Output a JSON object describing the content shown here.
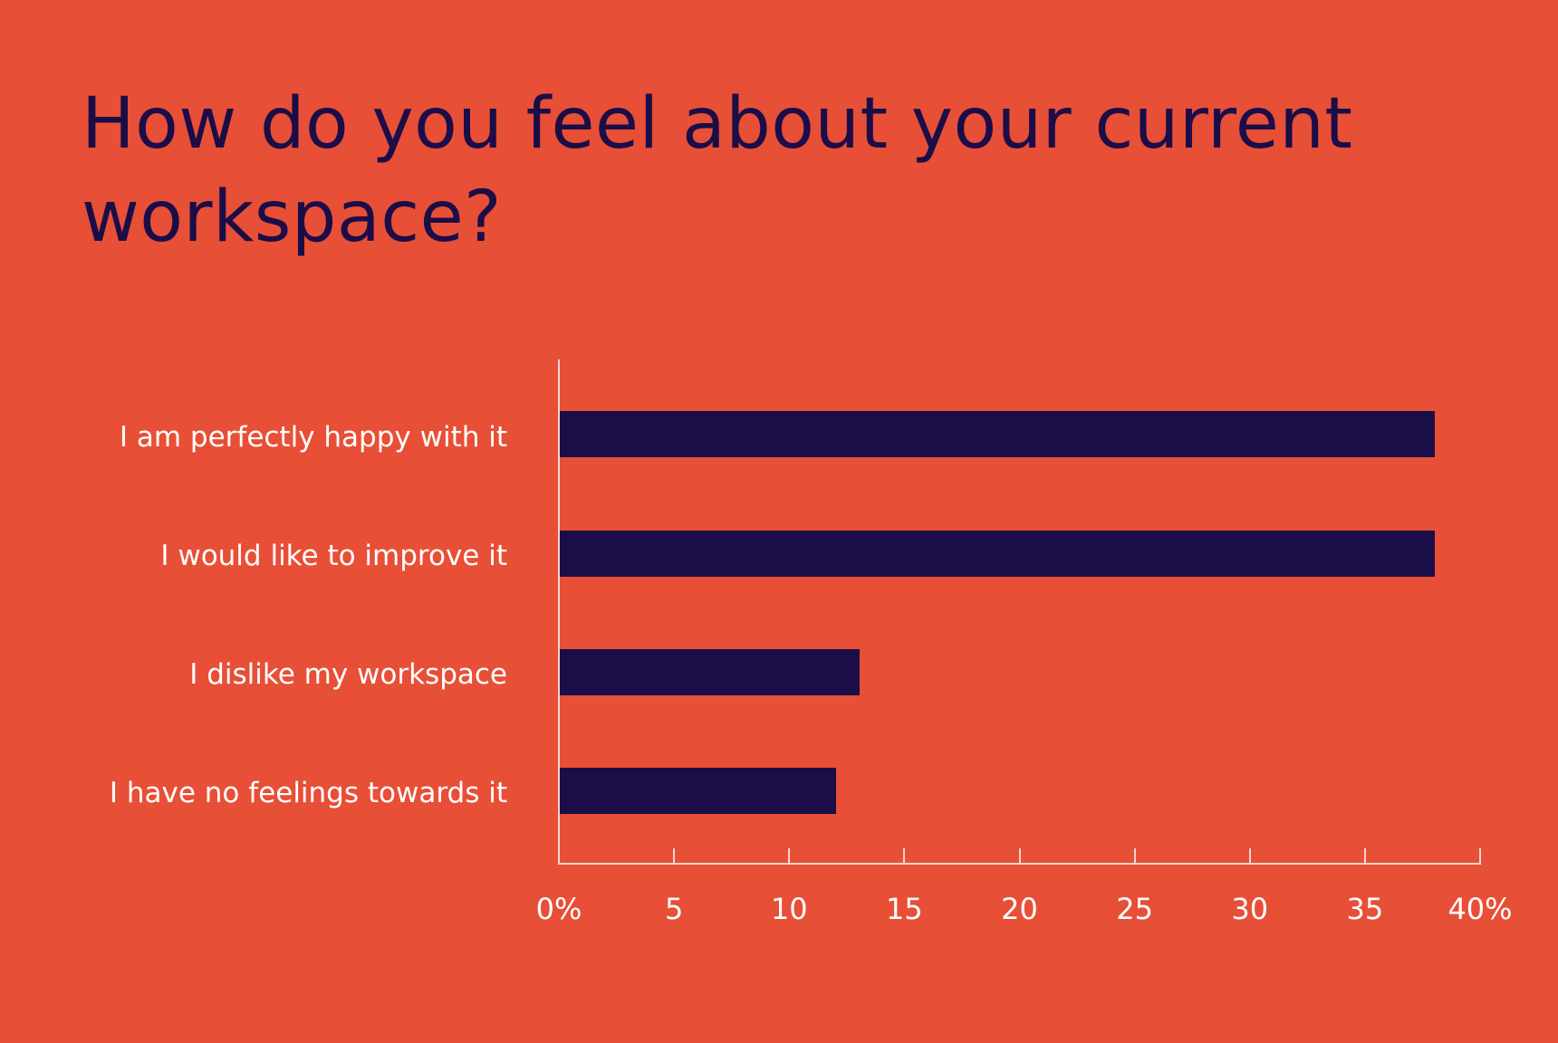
{
  "title": "How do you feel about your current workspace?",
  "colors": {
    "background": "#E84F37",
    "bar": "#1B0D47",
    "title": "#1B0D47",
    "text": "#FFFFFF",
    "axis": "#F7D6CE"
  },
  "axis": {
    "ticks": [
      "0%",
      "5",
      "10",
      "15",
      "20",
      "25",
      "30",
      "35",
      "40%"
    ]
  },
  "categories": [
    {
      "label": "I am perfectly happy with it",
      "value": 38
    },
    {
      "label": "I would like to improve it",
      "value": 38
    },
    {
      "label": "I dislike my workspace",
      "value": 13
    },
    {
      "label": "I have no feelings towards it",
      "value": 12
    }
  ],
  "chart_data": {
    "type": "bar",
    "orientation": "horizontal",
    "title": "How do you feel about your current workspace?",
    "categories": [
      "I am perfectly happy with it",
      "I would like to improve it",
      "I dislike my workspace",
      "I have no feelings towards it"
    ],
    "values": [
      38,
      38,
      13,
      12
    ],
    "xlabel": "",
    "ylabel": "",
    "xlim": [
      0,
      40
    ],
    "xticks": [
      0,
      5,
      10,
      15,
      20,
      25,
      30,
      35,
      40
    ],
    "xtick_labels": [
      "0%",
      "5",
      "10",
      "15",
      "20",
      "25",
      "30",
      "35",
      "40%"
    ],
    "unit": "%",
    "grid": false,
    "legend": null
  }
}
